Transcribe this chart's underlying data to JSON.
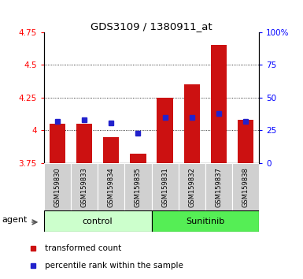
{
  "title": "GDS3109 / 1380911_at",
  "samples": [
    "GSM159830",
    "GSM159833",
    "GSM159834",
    "GSM159835",
    "GSM159831",
    "GSM159832",
    "GSM159837",
    "GSM159838"
  ],
  "groups": [
    "control",
    "control",
    "control",
    "control",
    "Sunitinib",
    "Sunitinib",
    "Sunitinib",
    "Sunitinib"
  ],
  "red_values": [
    4.05,
    4.05,
    3.95,
    3.82,
    4.25,
    4.35,
    4.65,
    4.08
  ],
  "blue_values": [
    4.07,
    4.08,
    4.06,
    3.98,
    4.1,
    4.1,
    4.13,
    4.07
  ],
  "y_min": 3.75,
  "y_max": 4.75,
  "y_ticks_left": [
    3.75,
    4.0,
    4.25,
    4.5,
    4.75
  ],
  "y_tick_labels_left": [
    "3.75",
    "4",
    "4.25",
    "4.5",
    "4.75"
  ],
  "y_ticks_right_pct": [
    0,
    25,
    50,
    75,
    100
  ],
  "y_ticks_right_labels": [
    "0",
    "25",
    "50",
    "75",
    "100%"
  ],
  "control_color": "#ccffcc",
  "sunitinib_color": "#55ee55",
  "bar_color": "#cc1111",
  "blue_color": "#2222cc",
  "sample_bg_color": "#d0d0d0",
  "legend_red_label": "transformed count",
  "legend_blue_label": "percentile rank within the sample",
  "agent_label": "agent",
  "control_label": "control",
  "sunitinib_label": "Sunitinib",
  "n_control": 4,
  "n_sunitinib": 4
}
